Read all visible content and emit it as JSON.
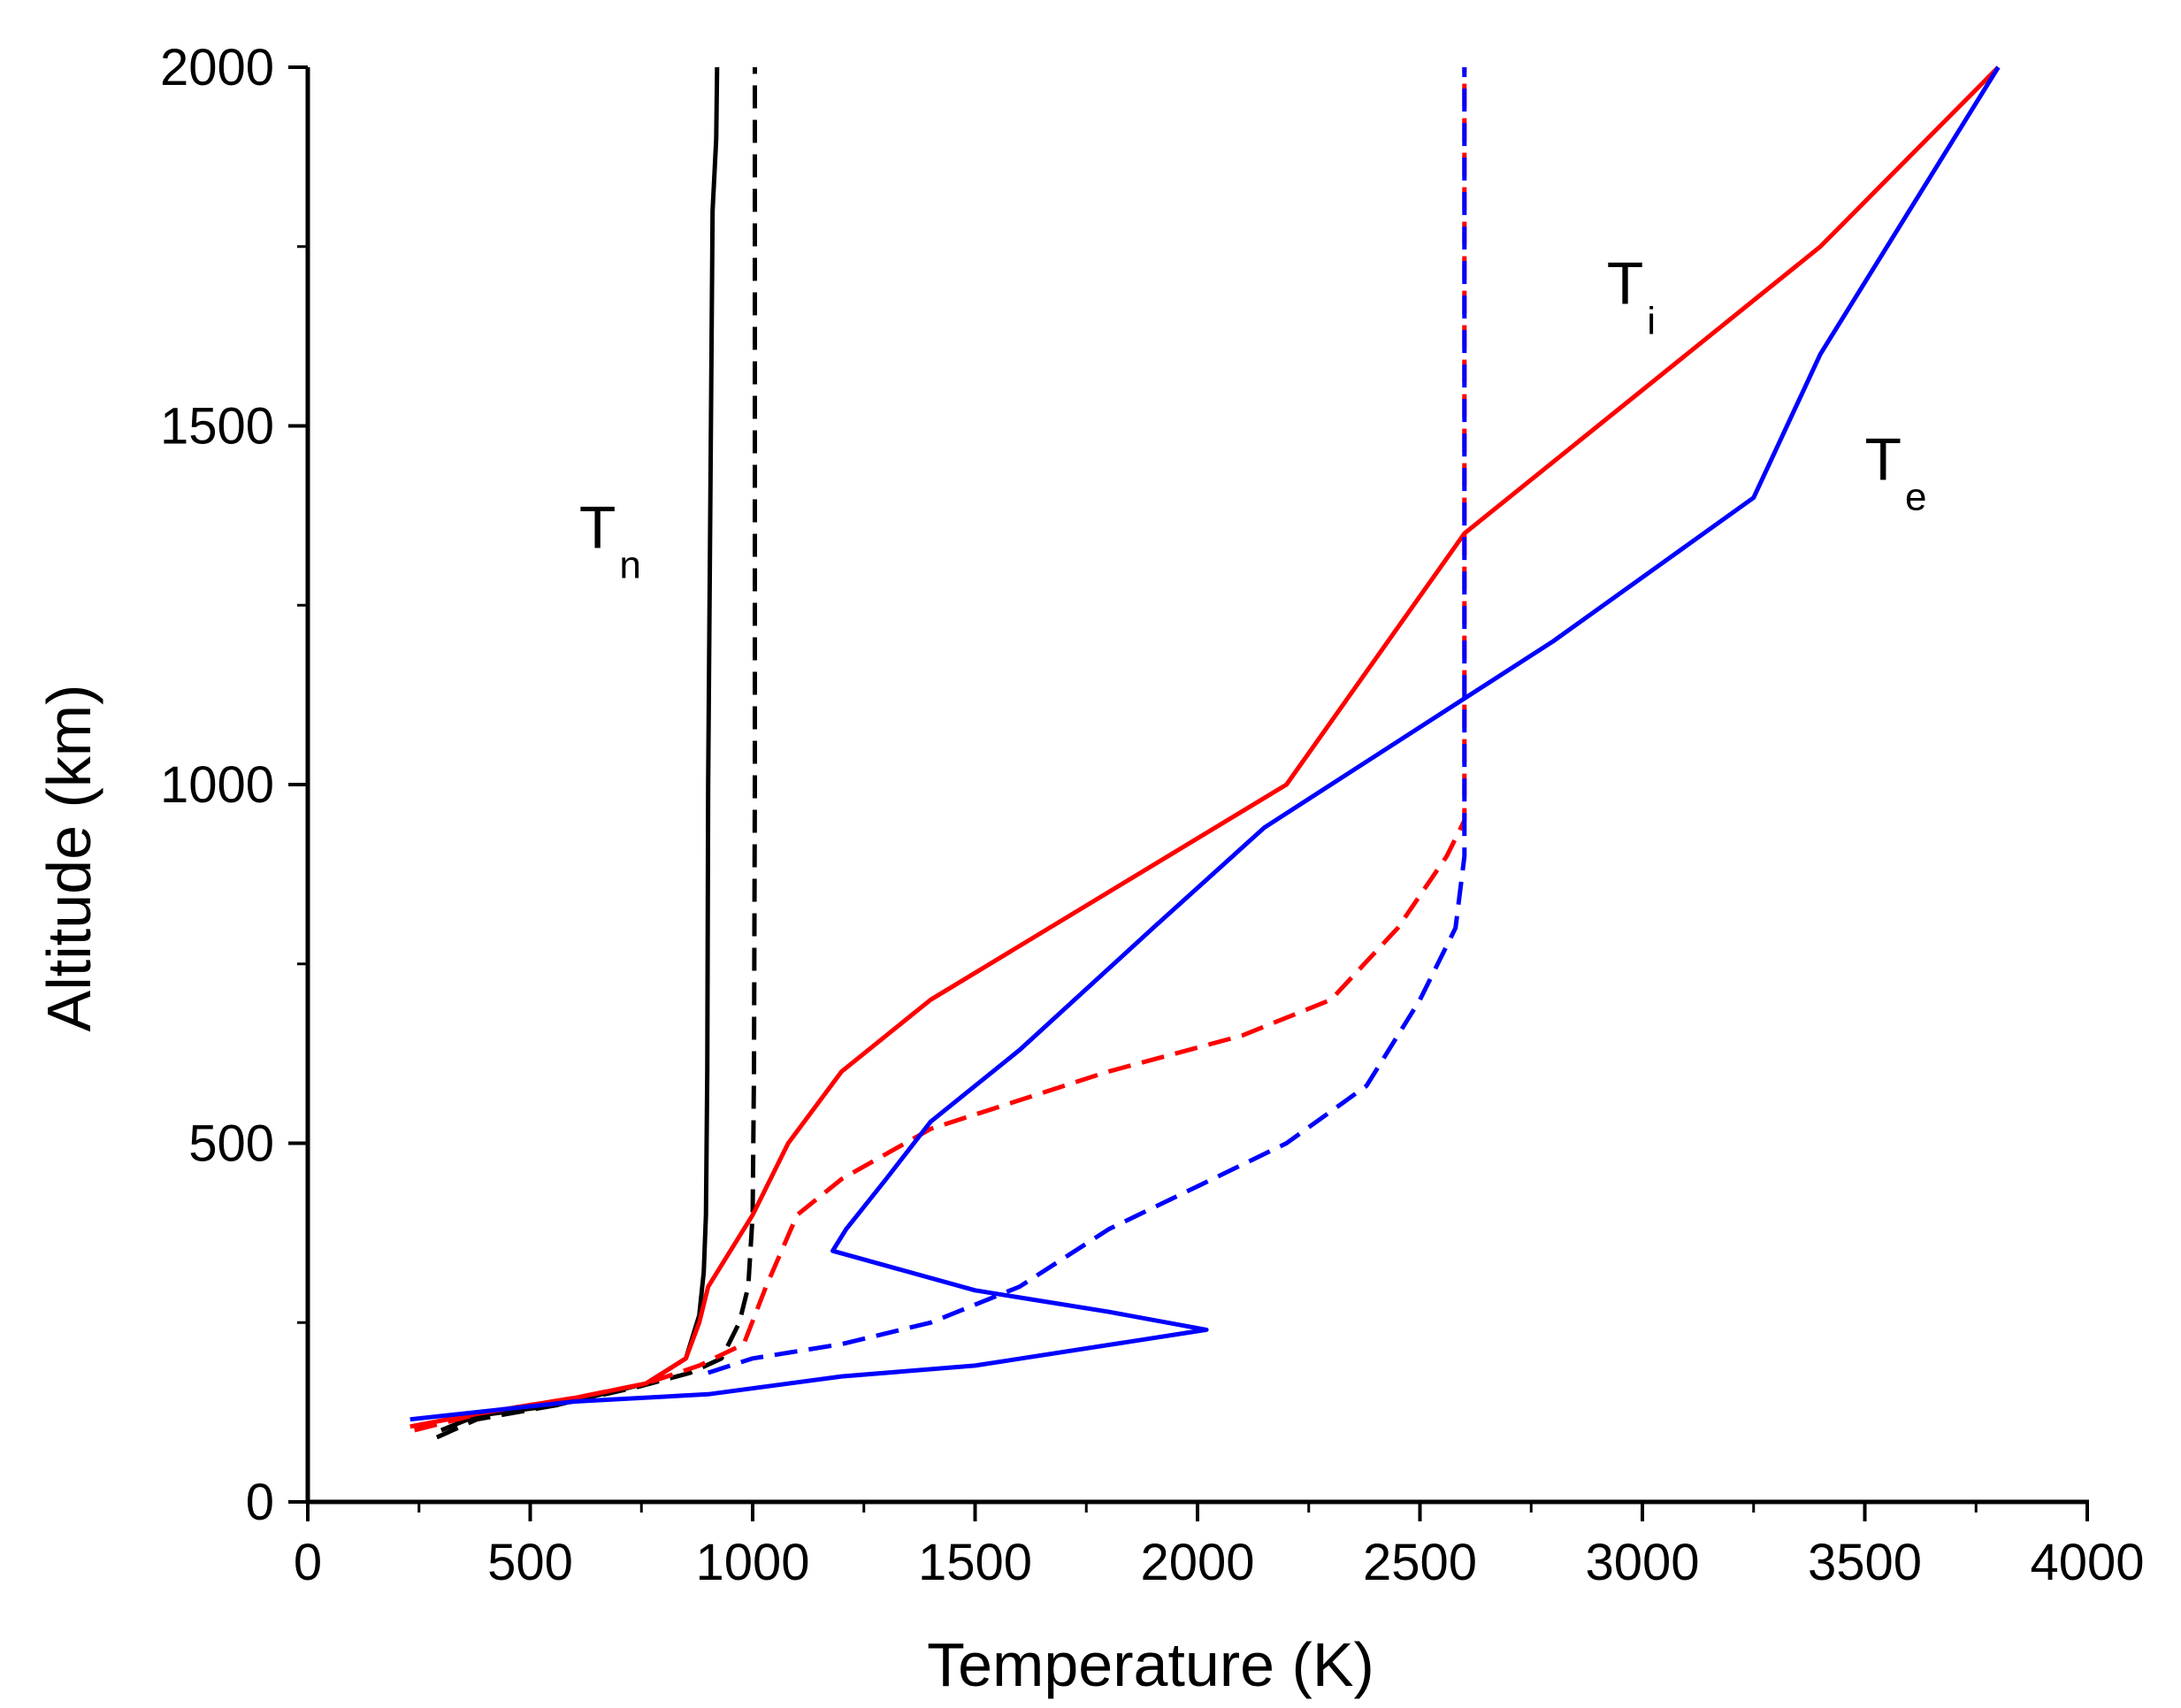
{
  "chart_data": {
    "type": "line",
    "title": "",
    "xlabel": "Temperature (K)",
    "ylabel": "Altitude (km)",
    "xlim": [
      0,
      4000
    ],
    "ylim": [
      0,
      2000
    ],
    "xticks": [
      0,
      500,
      1000,
      1500,
      2000,
      2500,
      3000,
      3500,
      4000
    ],
    "yticks": [
      0,
      500,
      1000,
      1500,
      2000
    ],
    "grid": false,
    "legend": "none",
    "annotations": [
      {
        "text": "T",
        "sub": "n",
        "x": 610,
        "y": 1330
      },
      {
        "text": "T",
        "sub": "i",
        "x": 2920,
        "y": 1670
      },
      {
        "text": "T",
        "sub": "e",
        "x": 3500,
        "y": 1425
      }
    ],
    "series": [
      {
        "name": "Tn (solid)",
        "color": "#000000",
        "dash": "solid",
        "points": [
          [
            300,
            100
          ],
          [
            380,
            120
          ],
          [
            560,
            135
          ],
          [
            760,
            165
          ],
          [
            850,
            200
          ],
          [
            880,
            260
          ],
          [
            890,
            320
          ],
          [
            895,
            400
          ],
          [
            898,
            600
          ],
          [
            900,
            1000
          ],
          [
            905,
            1400
          ],
          [
            910,
            1800
          ],
          [
            918,
            1900
          ],
          [
            920,
            2000
          ]
        ]
      },
      {
        "name": "Tn (dashed)",
        "color": "#000000",
        "dash": "dashed",
        "points": [
          [
            290,
            90
          ],
          [
            380,
            115
          ],
          [
            560,
            135
          ],
          [
            740,
            160
          ],
          [
            860,
            180
          ],
          [
            930,
            200
          ],
          [
            970,
            250
          ],
          [
            990,
            300
          ],
          [
            1000,
            400
          ],
          [
            1003,
            600
          ],
          [
            1005,
            1000
          ],
          [
            1005,
            2000
          ]
        ]
      },
      {
        "name": "Ti (solid)",
        "color": "#ff0000",
        "dash": "solid",
        "points": [
          [
            230,
            105
          ],
          [
            400,
            125
          ],
          [
            600,
            145
          ],
          [
            760,
            165
          ],
          [
            850,
            200
          ],
          [
            880,
            250
          ],
          [
            900,
            300
          ],
          [
            950,
            350
          ],
          [
            1000,
            400
          ],
          [
            1080,
            500
          ],
          [
            1200,
            600
          ],
          [
            1400,
            700
          ],
          [
            1800,
            850
          ],
          [
            2200,
            1000
          ],
          [
            2600,
            1350
          ],
          [
            3000,
            1550
          ],
          [
            3400,
            1750
          ],
          [
            3800,
            2000
          ]
        ]
      },
      {
        "name": "Ti (dashed)",
        "color": "#ff0000",
        "dash": "dashed",
        "points": [
          [
            240,
            100
          ],
          [
            400,
            125
          ],
          [
            600,
            145
          ],
          [
            760,
            165
          ],
          [
            880,
            190
          ],
          [
            980,
            220
          ],
          [
            1030,
            300
          ],
          [
            1100,
            400
          ],
          [
            1200,
            450
          ],
          [
            1400,
            520
          ],
          [
            1800,
            600
          ],
          [
            2100,
            650
          ],
          [
            2300,
            700
          ],
          [
            2450,
            800
          ],
          [
            2560,
            900
          ],
          [
            2600,
            950
          ],
          [
            2600,
            1000
          ],
          [
            2600,
            1500
          ],
          [
            2600,
            2000
          ]
        ]
      },
      {
        "name": "Te (solid)",
        "color": "#0000ff",
        "dash": "solid",
        "points": [
          [
            230,
            115
          ],
          [
            600,
            140
          ],
          [
            900,
            150
          ],
          [
            1200,
            175
          ],
          [
            1500,
            190
          ],
          [
            2020,
            240
          ],
          [
            1800,
            265
          ],
          [
            1500,
            295
          ],
          [
            1180,
            350
          ],
          [
            1210,
            380
          ],
          [
            1300,
            450
          ],
          [
            1400,
            530
          ],
          [
            1600,
            630
          ],
          [
            1900,
            800
          ],
          [
            2150,
            940
          ],
          [
            2450,
            1060
          ],
          [
            2800,
            1200
          ],
          [
            3250,
            1400
          ],
          [
            3400,
            1600
          ],
          [
            3600,
            1800
          ],
          [
            3800,
            2000
          ]
        ]
      },
      {
        "name": "Te (dashed)",
        "color": "#0000ff",
        "dash": "dashed",
        "points": [
          [
            900,
            180
          ],
          [
            1000,
            200
          ],
          [
            1200,
            220
          ],
          [
            1400,
            250
          ],
          [
            1600,
            300
          ],
          [
            1800,
            380
          ],
          [
            2000,
            440
          ],
          [
            2200,
            500
          ],
          [
            2380,
            580
          ],
          [
            2500,
            700
          ],
          [
            2580,
            800
          ],
          [
            2600,
            900
          ],
          [
            2600,
            1000
          ],
          [
            2600,
            1500
          ],
          [
            2600,
            2000
          ]
        ]
      }
    ]
  }
}
